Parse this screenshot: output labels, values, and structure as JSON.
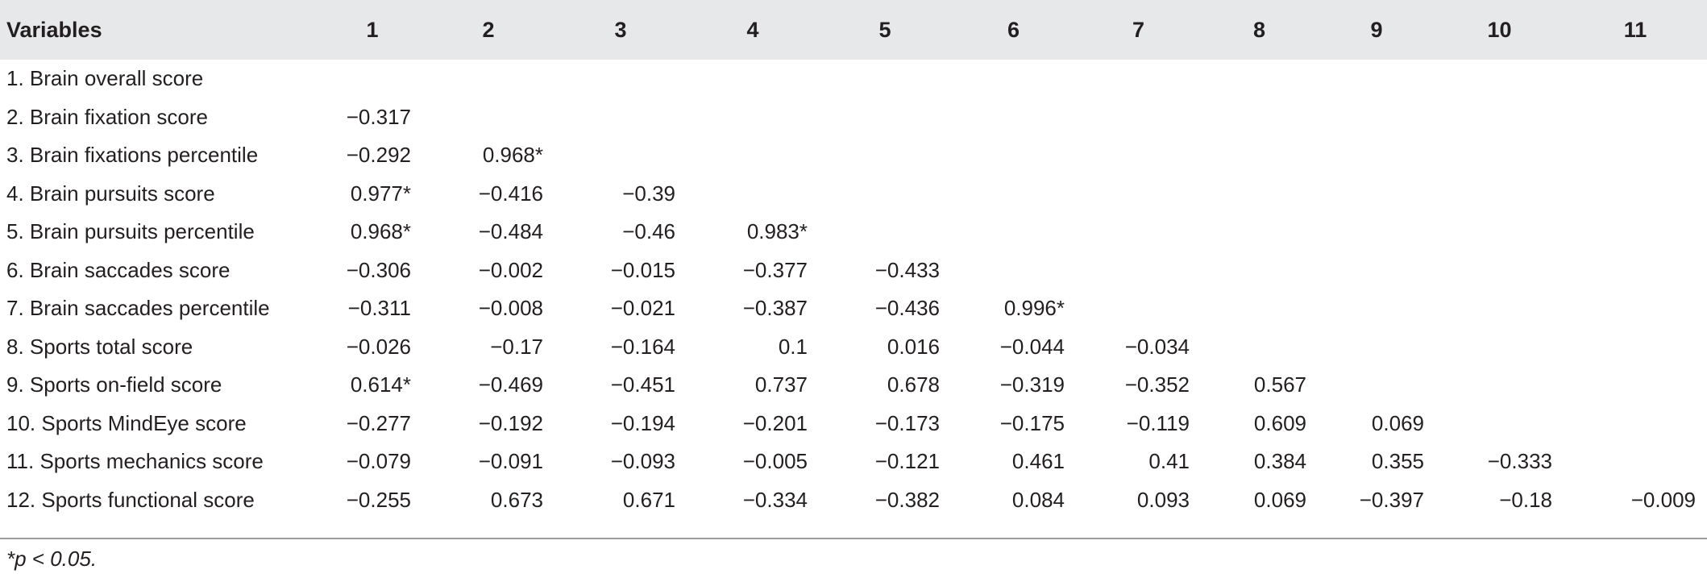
{
  "table": {
    "headers": [
      "Variables",
      "1",
      "2",
      "3",
      "4",
      "5",
      "6",
      "7",
      "8",
      "9",
      "10",
      "11"
    ],
    "rows": [
      [
        "1. Brain overall score",
        "",
        "",
        "",
        "",
        "",
        "",
        "",
        "",
        "",
        "",
        ""
      ],
      [
        "2. Brain fixation score",
        "−0.317",
        "",
        "",
        "",
        "",
        "",
        "",
        "",
        "",
        "",
        ""
      ],
      [
        "3. Brain fixations percentile",
        "−0.292",
        "0.968*",
        "",
        "",
        "",
        "",
        "",
        "",
        "",
        "",
        ""
      ],
      [
        "4. Brain pursuits score",
        "0.977*",
        "−0.416",
        "−0.39",
        "",
        "",
        "",
        "",
        "",
        "",
        "",
        ""
      ],
      [
        "5. Brain pursuits percentile",
        "0.968*",
        "−0.484",
        "−0.46",
        "0.983*",
        "",
        "",
        "",
        "",
        "",
        "",
        ""
      ],
      [
        "6. Brain saccades score",
        "−0.306",
        "−0.002",
        "−0.015",
        "−0.377",
        "−0.433",
        "",
        "",
        "",
        "",
        "",
        ""
      ],
      [
        "7. Brain saccades percentile",
        "−0.311",
        "−0.008",
        "−0.021",
        "−0.387",
        "−0.436",
        "0.996*",
        "",
        "",
        "",
        "",
        ""
      ],
      [
        "8. Sports total score",
        "−0.026",
        "−0.17",
        "−0.164",
        "0.1",
        "0.016",
        "−0.044",
        "−0.034",
        "",
        "",
        "",
        ""
      ],
      [
        "9. Sports on-field score",
        "0.614*",
        "−0.469",
        "−0.451",
        "0.737",
        "0.678",
        "−0.319",
        "−0.352",
        "0.567",
        "",
        "",
        ""
      ],
      [
        "10. Sports MindEye score",
        "−0.277",
        "−0.192",
        "−0.194",
        "−0.201",
        "−0.173",
        "−0.175",
        "−0.119",
        "0.609",
        "0.069",
        "",
        ""
      ],
      [
        "11. Sports mechanics score",
        "−0.079",
        "−0.091",
        "−0.093",
        "−0.005",
        "−0.121",
        "0.461",
        "0.41",
        "0.384",
        "0.355",
        "−0.333",
        ""
      ],
      [
        "12. Sports functional score",
        "−0.255",
        "0.673",
        "0.671",
        "−0.334",
        "−0.382",
        "0.084",
        "0.093",
        "0.069",
        "−0.397",
        "−0.18",
        "−0.009"
      ]
    ]
  },
  "footnote": "*p < 0.05."
}
